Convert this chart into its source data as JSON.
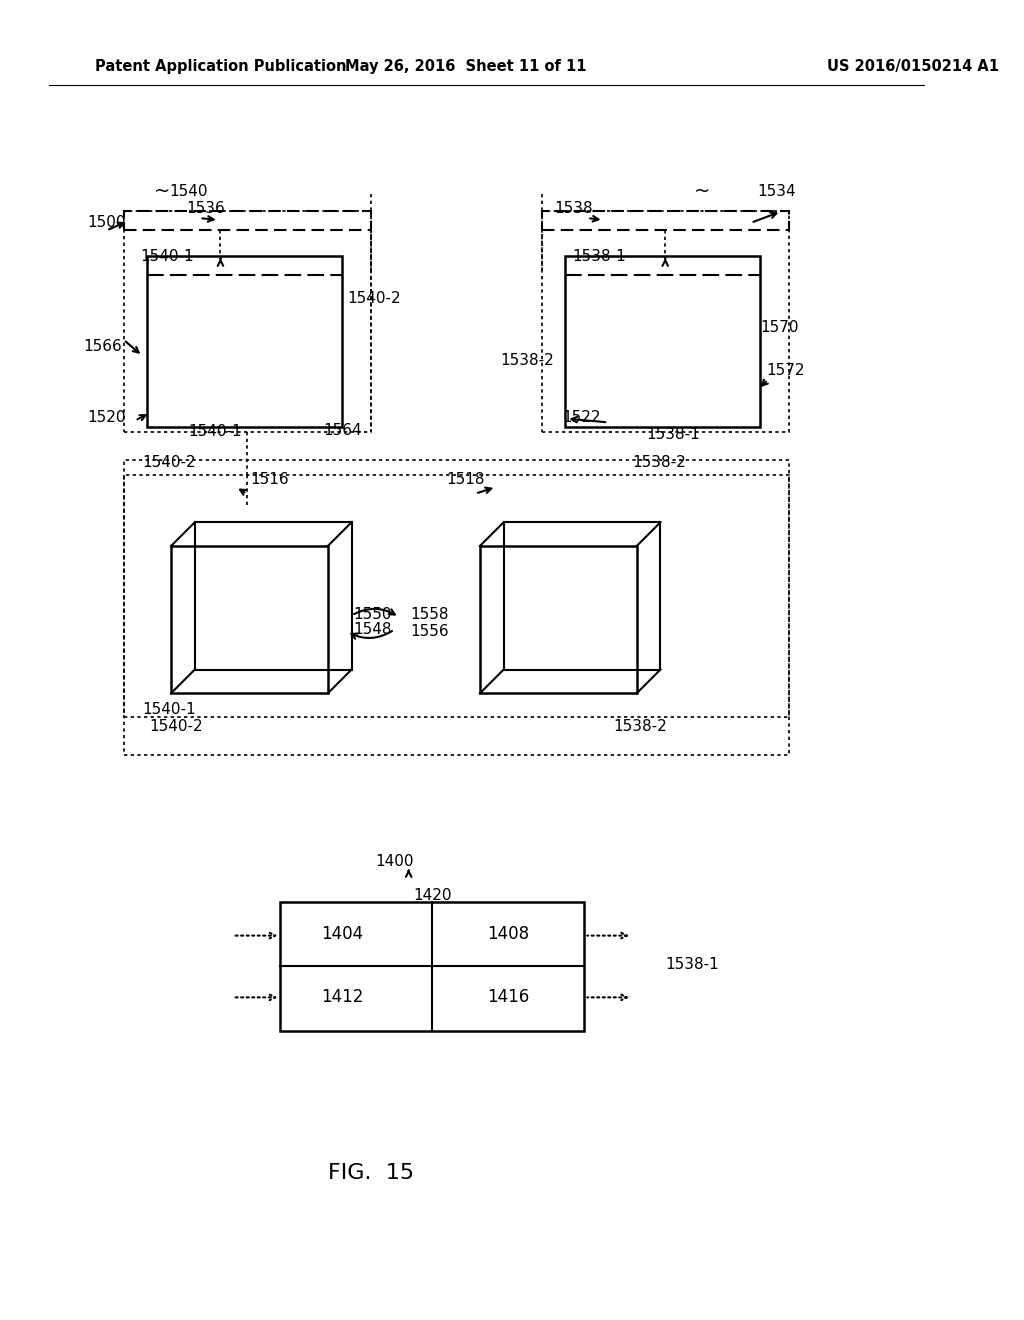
{
  "title_left": "Patent Application Publication",
  "title_mid": "May 26, 2016  Sheet 11 of 11",
  "title_right": "US 2016/0150214 A1",
  "fig_label": "FIG.  15",
  "bg_color": "#ffffff",
  "fg_color": "#000000"
}
